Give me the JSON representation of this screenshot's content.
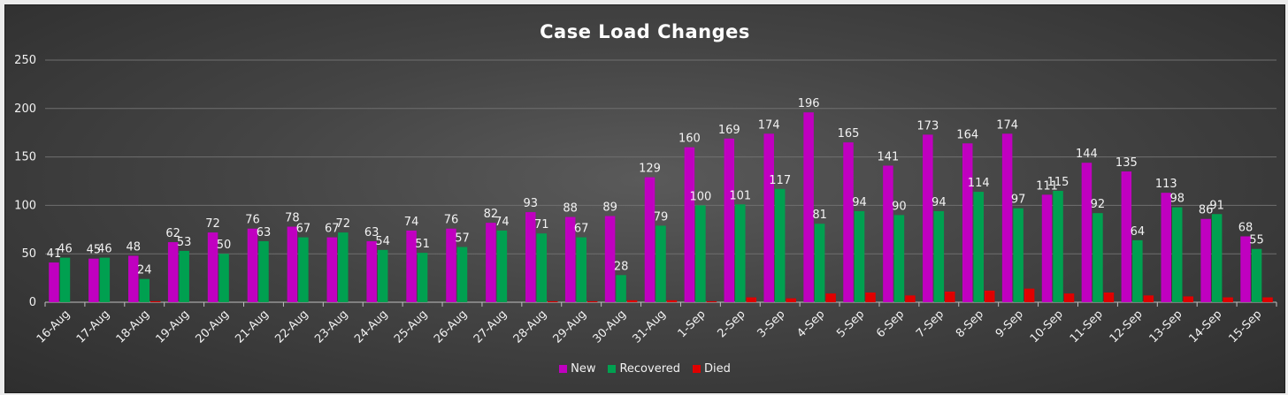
{
  "colors": {
    "new": "#c000c0",
    "recovered": "#00a050",
    "died": "#e00000",
    "axis_text": "#f2f2f2",
    "grid": "#6f6f6f"
  },
  "chart_data": {
    "type": "bar",
    "title": "Case Load Changes",
    "xlabel": "",
    "ylabel": "",
    "ylim": [
      0,
      250
    ],
    "yticks": [
      0,
      50,
      100,
      150,
      200,
      250
    ],
    "grid": true,
    "legend_position": "bottom",
    "categories": [
      "16-Aug",
      "17-Aug",
      "18-Aug",
      "19-Aug",
      "20-Aug",
      "21-Aug",
      "22-Aug",
      "23-Aug",
      "24-Aug",
      "25-Aug",
      "26-Aug",
      "27-Aug",
      "28-Aug",
      "29-Aug",
      "30-Aug",
      "31-Aug",
      "1-Sep",
      "2-Sep",
      "3-Sep",
      "4-Sep",
      "5-Sep",
      "6-Sep",
      "7-Sep",
      "8-Sep",
      "9-Sep",
      "10-Sep",
      "11-Sep",
      "12-Sep",
      "13-Sep",
      "14-Sep",
      "15-Sep"
    ],
    "series": [
      {
        "name": "New",
        "color_key": "new",
        "labels": true,
        "values": [
          41,
          45,
          48,
          62,
          72,
          76,
          78,
          67,
          63,
          74,
          76,
          82,
          93,
          88,
          89,
          129,
          160,
          169,
          174,
          196,
          165,
          141,
          173,
          164,
          174,
          111,
          144,
          135,
          113,
          86,
          68
        ]
      },
      {
        "name": "Recovered",
        "color_key": "recovered",
        "labels": true,
        "values": [
          46,
          46,
          24,
          53,
          50,
          63,
          67,
          72,
          54,
          51,
          57,
          74,
          71,
          67,
          28,
          79,
          100,
          101,
          117,
          81,
          94,
          90,
          94,
          114,
          97,
          115,
          92,
          64,
          98,
          91,
          55
        ]
      },
      {
        "name": "Died",
        "color_key": "died",
        "labels": false,
        "values": [
          0,
          0,
          1,
          0,
          0,
          0,
          0,
          0,
          0,
          0,
          0,
          0,
          1,
          1,
          2,
          2,
          1,
          5,
          4,
          9,
          10,
          7,
          11,
          12,
          14,
          9,
          10,
          7,
          6,
          5,
          5
        ]
      }
    ]
  }
}
